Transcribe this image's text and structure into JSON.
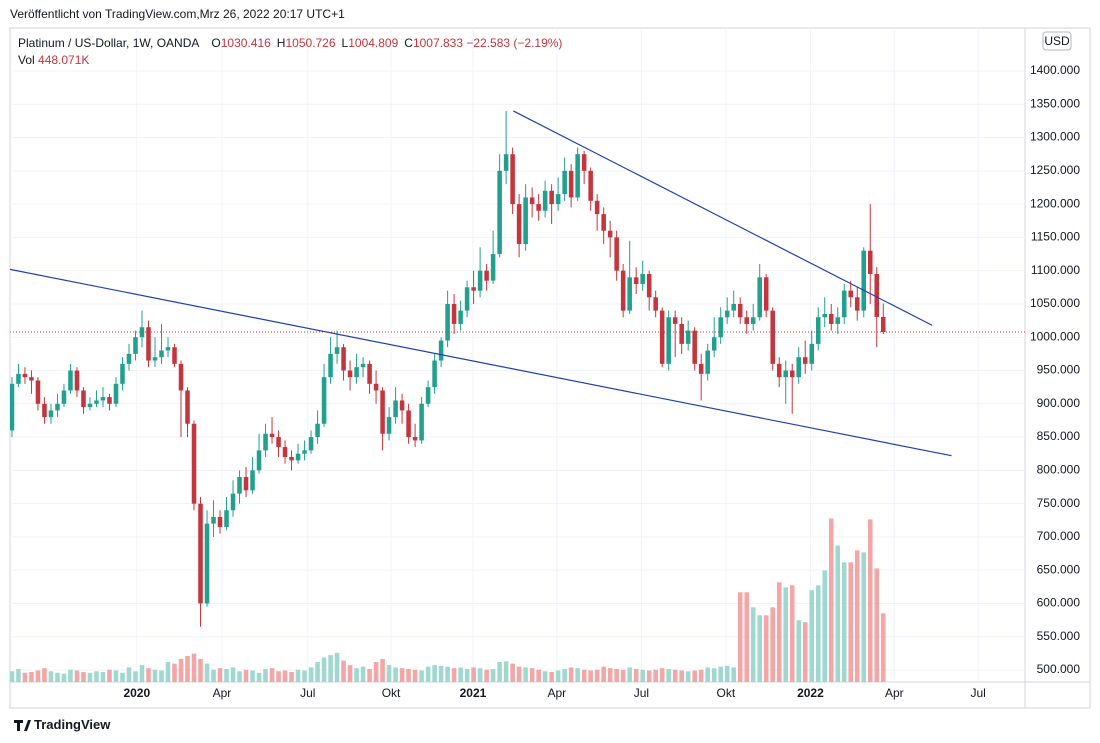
{
  "published": "Veröffentlicht von TradingView.com,Mrz 26, 2022 20:17 UTC+1",
  "footer": "TradingView",
  "chart_data": {
    "type": "candlestick",
    "title": "Platinum / US-Dollar, 1W, OANDA",
    "header_ohlc": [
      {
        "key": "O",
        "value": "1030.416"
      },
      {
        "key": "H",
        "value": "1050.726"
      },
      {
        "key": "L",
        "value": "1004.809"
      },
      {
        "key": "C",
        "value": "1007.833"
      }
    ],
    "header_change": "−22.583 (−2.19%)",
    "volume_title": "Vol",
    "volume_value": "448.071K",
    "currency": "USD",
    "up_color": "#22a08e",
    "down_color": "#c4363e",
    "volume_up_color": "#9fd8cf",
    "volume_down_color": "#f4a5a5",
    "trendline_color": "#1e40af",
    "last_price_color": "#c4363e",
    "grid": true,
    "open": [
      860,
      930,
      945,
      940,
      935,
      900,
      880,
      890,
      900,
      920,
      950,
      920,
      895,
      900,
      905,
      910,
      900,
      930,
      960,
      975,
      1000,
      1015,
      965,
      970,
      980,
      985,
      960,
      920,
      870,
      750,
      600,
      720,
      730,
      715,
      740,
      765,
      790,
      770,
      800,
      830,
      855,
      850,
      835,
      820,
      815,
      825,
      830,
      850,
      870,
      940,
      975,
      985,
      950,
      940,
      955,
      960,
      930,
      920,
      855,
      880,
      905,
      890,
      850,
      845,
      900,
      925,
      965,
      995,
      1050,
      1020,
      1040,
      1075,
      1070,
      1100,
      1085,
      1125,
      1250,
      1275,
      1200,
      1140,
      1210,
      1200,
      1190,
      1220,
      1200,
      1215,
      1250,
      1210,
      1275,
      1250,
      1205,
      1185,
      1160,
      1150,
      1100,
      1040,
      1090,
      1080,
      1095,
      1060,
      1040,
      960,
      1030,
      1020,
      990,
      1010,
      960,
      945,
      980,
      1000,
      1030,
      1040,
      1050,
      1030,
      1020,
      1030,
      1090,
      1040,
      960,
      940,
      950,
      940,
      970,
      960,
      990,
      1030,
      1035,
      1020,
      1030,
      1070,
      1060,
      1040,
      1130,
      1095,
      1030.416
    ],
    "high": [
      940,
      960,
      955,
      950,
      940,
      910,
      900,
      915,
      930,
      960,
      955,
      925,
      910,
      920,
      925,
      915,
      940,
      970,
      990,
      1010,
      1040,
      1025,
      1000,
      1020,
      1000,
      990,
      965,
      925,
      875,
      760,
      740,
      755,
      740,
      760,
      785,
      800,
      805,
      820,
      855,
      870,
      880,
      860,
      845,
      830,
      840,
      845,
      860,
      890,
      960,
      1000,
      1010,
      990,
      965,
      975,
      970,
      965,
      950,
      925,
      895,
      925,
      915,
      900,
      870,
      910,
      935,
      975,
      1000,
      1070,
      1065,
      1055,
      1085,
      1100,
      1135,
      1110,
      1160,
      1275,
      1340,
      1285,
      1215,
      1230,
      1225,
      1215,
      1235,
      1230,
      1240,
      1270,
      1260,
      1285,
      1280,
      1255,
      1215,
      1195,
      1175,
      1160,
      1110,
      1145,
      1105,
      1115,
      1100,
      1070,
      1045,
      1040,
      1040,
      1030,
      1025,
      1015,
      975,
      990,
      1030,
      1045,
      1060,
      1070,
      1060,
      1040,
      1050,
      1110,
      1095,
      1045,
      970,
      965,
      960,
      985,
      995,
      1010,
      1045,
      1060,
      1050,
      1045,
      1080,
      1085,
      1075,
      1135,
      1200,
      1105,
      1050.726
    ],
    "low": [
      850,
      925,
      930,
      915,
      890,
      870,
      870,
      880,
      895,
      915,
      910,
      885,
      890,
      895,
      895,
      890,
      895,
      920,
      950,
      965,
      985,
      955,
      955,
      960,
      970,
      955,
      850,
      850,
      740,
      565,
      595,
      700,
      705,
      710,
      730,
      750,
      760,
      765,
      795,
      820,
      840,
      820,
      810,
      800,
      810,
      815,
      825,
      840,
      865,
      930,
      960,
      935,
      920,
      930,
      940,
      915,
      900,
      830,
      845,
      870,
      870,
      840,
      835,
      840,
      895,
      915,
      955,
      985,
      1005,
      1010,
      1030,
      1050,
      1060,
      1070,
      1080,
      1120,
      1230,
      1185,
      1120,
      1130,
      1180,
      1175,
      1180,
      1170,
      1190,
      1205,
      1195,
      1205,
      1230,
      1190,
      1160,
      1140,
      1120,
      1085,
      1030,
      1035,
      1065,
      1070,
      1040,
      1030,
      955,
      950,
      970,
      975,
      980,
      950,
      905,
      935,
      970,
      990,
      1020,
      1030,
      1020,
      1005,
      1010,
      1025,
      1030,
      950,
      925,
      900,
      885,
      930,
      945,
      950,
      980,
      1015,
      1010,
      1005,
      1020,
      1045,
      1025,
      1030,
      1050,
      985,
      1004.809
    ],
    "close": [
      930,
      945,
      940,
      935,
      900,
      880,
      890,
      900,
      920,
      950,
      920,
      895,
      900,
      905,
      910,
      900,
      930,
      960,
      975,
      1000,
      1015,
      965,
      970,
      980,
      985,
      960,
      920,
      870,
      750,
      600,
      720,
      730,
      715,
      740,
      765,
      790,
      770,
      800,
      830,
      855,
      850,
      835,
      820,
      815,
      825,
      830,
      850,
      870,
      940,
      975,
      985,
      950,
      940,
      955,
      960,
      930,
      920,
      855,
      880,
      905,
      890,
      850,
      845,
      900,
      925,
      965,
      995,
      1050,
      1020,
      1040,
      1075,
      1070,
      1100,
      1085,
      1125,
      1250,
      1275,
      1200,
      1140,
      1210,
      1200,
      1190,
      1220,
      1200,
      1215,
      1250,
      1210,
      1275,
      1250,
      1205,
      1185,
      1160,
      1150,
      1100,
      1040,
      1090,
      1080,
      1095,
      1060,
      1040,
      960,
      1030,
      1020,
      990,
      1010,
      960,
      945,
      980,
      1000,
      1030,
      1040,
      1050,
      1030,
      1020,
      1030,
      1090,
      1040,
      960,
      940,
      950,
      940,
      970,
      960,
      990,
      1030,
      1035,
      1020,
      1030,
      1070,
      1060,
      1040,
      1130,
      1095,
      1030.416,
      1007.833
    ],
    "volume": [
      70000,
      85000,
      60000,
      65000,
      75000,
      90000,
      70000,
      60000,
      55000,
      80000,
      75000,
      65000,
      60000,
      70000,
      65000,
      80000,
      75000,
      60000,
      95000,
      70000,
      110000,
      90000,
      80000,
      75000,
      130000,
      120000,
      150000,
      170000,
      185000,
      150000,
      120000,
      80000,
      90000,
      85000,
      95000,
      70000,
      80000,
      75000,
      60000,
      85000,
      90000,
      70000,
      75000,
      65000,
      80000,
      75000,
      95000,
      130000,
      160000,
      175000,
      190000,
      140000,
      110000,
      90000,
      100000,
      85000,
      130000,
      150000,
      110000,
      95000,
      90000,
      85000,
      80000,
      75000,
      100000,
      110000,
      105000,
      100000,
      90000,
      95000,
      85000,
      95000,
      90000,
      80000,
      85000,
      130000,
      135000,
      120000,
      100000,
      95000,
      90000,
      80000,
      70000,
      65000,
      75000,
      85000,
      95000,
      90000,
      80000,
      75000,
      80000,
      100000,
      90000,
      85000,
      80000,
      95000,
      85000,
      80000,
      75000,
      80000,
      90000,
      85000,
      80000,
      75000,
      70000,
      75000,
      80000,
      95000,
      90000,
      100000,
      105000,
      95000,
      585000,
      585000,
      487000,
      435000,
      435000,
      487000,
      650000,
      617000,
      630000,
      403000,
      390000,
      598000,
      630000,
      728000,
      1066000,
      890000,
      780000,
      780000,
      858000,
      845000,
      1060000,
      741000,
      448071
    ],
    "xlim": [
      -0.3,
      155.8
    ],
    "xticks": [
      {
        "value": 19.2,
        "label": "2020"
      },
      {
        "value": 32.3,
        "label": "Apr"
      },
      {
        "value": 45.5,
        "label": "Jul"
      },
      {
        "value": 58.3,
        "label": "Okt"
      },
      {
        "value": 70.9,
        "label": "2021"
      },
      {
        "value": 83.8,
        "label": "Apr"
      },
      {
        "value": 96.8,
        "label": "Jul"
      },
      {
        "value": 109.8,
        "label": "Okt"
      },
      {
        "value": 122.8,
        "label": "2022"
      },
      {
        "value": 135.7,
        "label": "Apr"
      },
      {
        "value": 148.6,
        "label": "Jul"
      }
    ],
    "ylim": [
      482,
      1464.6
    ],
    "yticks": [
      {
        "value": 500,
        "label": "500.000"
      },
      {
        "value": 550,
        "label": "550.000"
      },
      {
        "value": 600,
        "label": "600.000"
      },
      {
        "value": 650,
        "label": "650.000"
      },
      {
        "value": 700,
        "label": "700.000"
      },
      {
        "value": 750,
        "label": "750.000"
      },
      {
        "value": 800,
        "label": "800.000"
      },
      {
        "value": 850,
        "label": "850.000"
      },
      {
        "value": 900,
        "label": "900.000"
      },
      {
        "value": 950,
        "label": "950.000"
      },
      {
        "value": 1000,
        "label": "1000.000"
      },
      {
        "value": 1050,
        "label": "1050.000"
      },
      {
        "value": 1100,
        "label": "1100.000"
      },
      {
        "value": 1150,
        "label": "1150.000"
      },
      {
        "value": 1200,
        "label": "1200.000"
      },
      {
        "value": 1250,
        "label": "1250.000"
      },
      {
        "value": 1300,
        "label": "1300.000"
      },
      {
        "value": 1350,
        "label": "1350.000"
      },
      {
        "value": 1400,
        "label": "1400.000"
      }
    ],
    "trendlines": [
      {
        "x": [
          -0.3,
          144.5
        ],
        "y": [
          1102,
          822
        ]
      },
      {
        "x": [
          77.1,
          141.5
        ],
        "y": [
          1340,
          1018
        ]
      }
    ]
  }
}
